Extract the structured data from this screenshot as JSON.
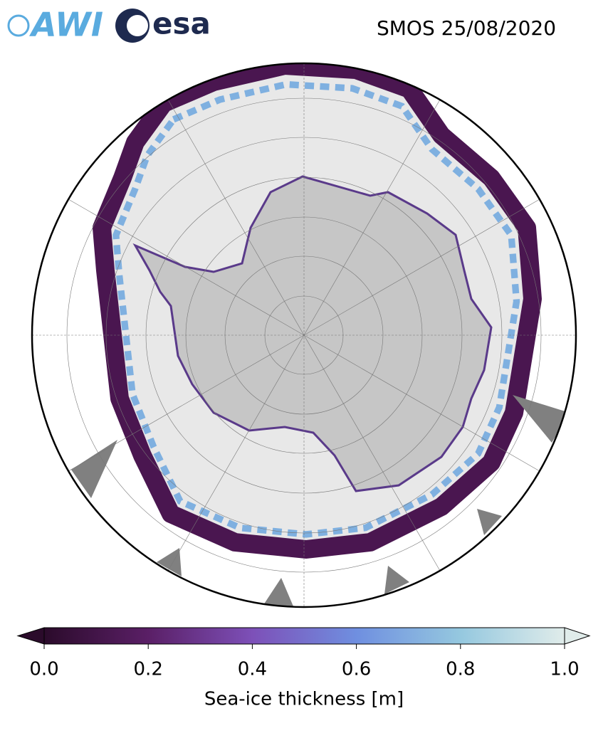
{
  "header": {
    "logos": [
      "AWI",
      "esa"
    ],
    "title": "SMOS 25/08/2020"
  },
  "colorbar": {
    "label": "Sea-ice thickness [m]",
    "lim": [
      0,
      1
    ],
    "ticks": [
      {
        "value": 0,
        "label": "0.0"
      },
      0.2,
      0.4,
      0.6,
      0.8,
      {
        "value": 1,
        "label": "1.0"
      }
    ],
    "colors": [
      "#2b0b2b",
      "#5a1f66",
      "#7d50b8",
      "#6f8fe0",
      "#95c8df",
      "#e0ecea"
    ]
  }
}
